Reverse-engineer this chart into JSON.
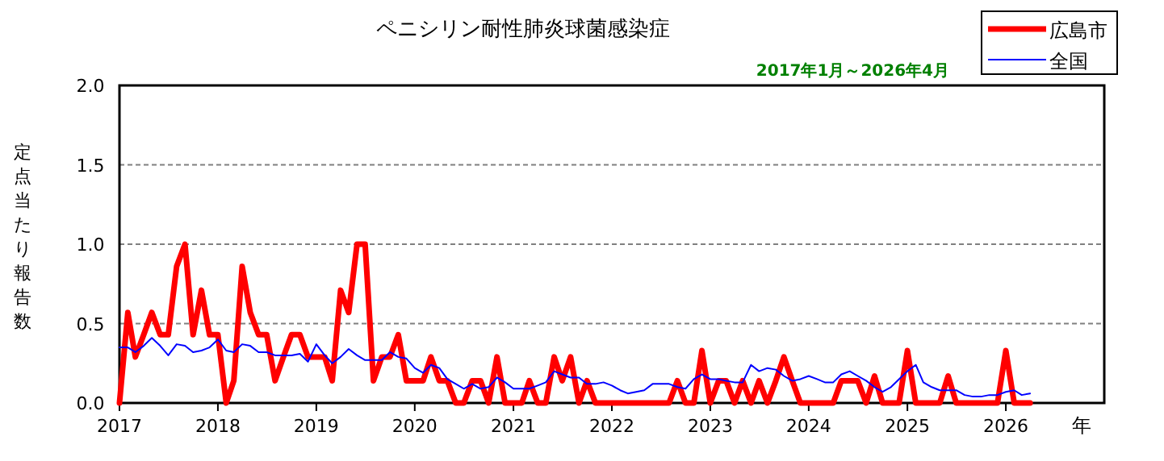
{
  "chart_data": {
    "type": "line",
    "title": "ペニシリン耐性肺炎球菌感染症",
    "subtitle": "2017年1月～2026年4月",
    "xlabel": "年",
    "ylabel": "定点当たり報告数",
    "x": [
      "2017-01",
      "2017-02",
      "2017-03",
      "2017-04",
      "2017-05",
      "2017-06",
      "2017-07",
      "2017-08",
      "2017-09",
      "2017-10",
      "2017-11",
      "2017-12",
      "2018-01",
      "2018-02",
      "2018-03",
      "2018-04",
      "2018-05",
      "2018-06",
      "2018-07",
      "2018-08",
      "2018-09",
      "2018-10",
      "2018-11",
      "2018-12",
      "2019-01",
      "2019-02",
      "2019-03",
      "2019-04",
      "2019-05",
      "2019-06",
      "2019-07",
      "2019-08",
      "2019-09",
      "2019-10",
      "2019-11",
      "2019-12",
      "2020-01",
      "2020-02",
      "2020-03",
      "2020-04",
      "2020-05",
      "2020-06",
      "2020-07",
      "2020-08",
      "2020-09",
      "2020-10",
      "2020-11",
      "2020-12",
      "2021-01",
      "2021-02",
      "2021-03",
      "2021-04",
      "2021-05",
      "2021-06",
      "2021-07",
      "2021-08",
      "2021-09",
      "2021-10",
      "2021-11",
      "2021-12",
      "2022-01",
      "2022-02",
      "2022-03",
      "2022-04",
      "2022-05",
      "2022-06",
      "2022-07",
      "2022-08",
      "2022-09",
      "2022-10",
      "2022-11",
      "2022-12",
      "2023-01",
      "2023-02",
      "2023-03",
      "2023-04",
      "2023-05",
      "2023-06",
      "2023-07",
      "2023-08",
      "2023-09",
      "2023-10",
      "2023-11",
      "2023-12",
      "2024-01",
      "2024-02",
      "2024-03",
      "2024-04",
      "2024-05",
      "2024-06",
      "2024-07",
      "2024-08",
      "2024-09",
      "2024-10",
      "2024-11",
      "2024-12",
      "2025-01",
      "2025-02",
      "2025-03",
      "2025-04",
      "2025-05",
      "2025-06",
      "2025-07",
      "2025-08",
      "2025-09",
      "2025-10",
      "2025-11",
      "2025-12",
      "2026-01",
      "2026-02",
      "2026-03",
      "2026-04"
    ],
    "series": [
      {
        "name": "広島市",
        "color": "#ff0000",
        "values": [
          0,
          0.57,
          0.29,
          0.43,
          0.57,
          0.43,
          0.43,
          0.86,
          1.0,
          0.43,
          0.71,
          0.43,
          0.43,
          0,
          0.14,
          0.86,
          0.57,
          0.43,
          0.43,
          0.14,
          0.29,
          0.43,
          0.43,
          0.29,
          0.29,
          0.29,
          0.14,
          0.71,
          0.57,
          1.0,
          1.0,
          0.14,
          0.29,
          0.29,
          0.43,
          0.14,
          0.14,
          0.14,
          0.29,
          0.14,
          0.14,
          0,
          0,
          0.14,
          0.14,
          0,
          0.29,
          0,
          0,
          0,
          0.14,
          0,
          0,
          0.29,
          0.14,
          0.29,
          0,
          0.14,
          0,
          0,
          0,
          0,
          0,
          0,
          0,
          0,
          0,
          0,
          0.14,
          0,
          0,
          0.33,
          0,
          0.14,
          0.14,
          0,
          0.14,
          0,
          0.14,
          0,
          0.14,
          0.29,
          0.14,
          0,
          0,
          0,
          0,
          0,
          0.14,
          0.14,
          0.14,
          0,
          0.17,
          0,
          0,
          0,
          0.33,
          0,
          0,
          0,
          0,
          0.17,
          0,
          0,
          0,
          0,
          0,
          0,
          0.33,
          0,
          0,
          0
        ]
      },
      {
        "name": "全国",
        "color": "#0000ff",
        "values": [
          0.35,
          0.35,
          0.32,
          0.36,
          0.41,
          0.36,
          0.3,
          0.37,
          0.36,
          0.32,
          0.33,
          0.35,
          0.4,
          0.33,
          0.32,
          0.37,
          0.36,
          0.32,
          0.32,
          0.3,
          0.3,
          0.3,
          0.31,
          0.26,
          0.37,
          0.3,
          0.25,
          0.29,
          0.34,
          0.3,
          0.27,
          0.27,
          0.27,
          0.32,
          0.29,
          0.28,
          0.22,
          0.19,
          0.24,
          0.22,
          0.15,
          0.12,
          0.09,
          0.12,
          0.09,
          0.1,
          0.16,
          0.13,
          0.09,
          0.09,
          0.09,
          0.11,
          0.13,
          0.2,
          0.18,
          0.16,
          0.16,
          0.12,
          0.12,
          0.13,
          0.11,
          0.08,
          0.06,
          0.07,
          0.08,
          0.12,
          0.12,
          0.12,
          0.1,
          0.09,
          0.15,
          0.18,
          0.15,
          0.15,
          0.14,
          0.13,
          0.13,
          0.24,
          0.2,
          0.22,
          0.21,
          0.17,
          0.14,
          0.15,
          0.17,
          0.15,
          0.13,
          0.13,
          0.18,
          0.2,
          0.17,
          0.14,
          0.1,
          0.07,
          0.1,
          0.15,
          0.2,
          0.24,
          0.13,
          0.1,
          0.08,
          0.08,
          0.08,
          0.05,
          0.04,
          0.04,
          0.05,
          0.05,
          0.07,
          0.08,
          0.05,
          0.06
        ]
      }
    ],
    "xlim": [
      "2017",
      "2027"
    ],
    "xticks": [
      "2017",
      "2018",
      "2019",
      "2020",
      "2021",
      "2022",
      "2023",
      "2024",
      "2025",
      "2026"
    ],
    "ylim": [
      0,
      2
    ],
    "yticks": [
      {
        "value": 0,
        "label": "0.0"
      },
      {
        "value": 0.5,
        "label": "0.5"
      },
      {
        "value": 1,
        "label": "1.0"
      },
      {
        "value": 1.5,
        "label": "1.5"
      },
      {
        "value": 2,
        "label": "2.0"
      }
    ],
    "grid": "y",
    "legend": "top right",
    "marker": "none",
    "line_style": "solid"
  }
}
